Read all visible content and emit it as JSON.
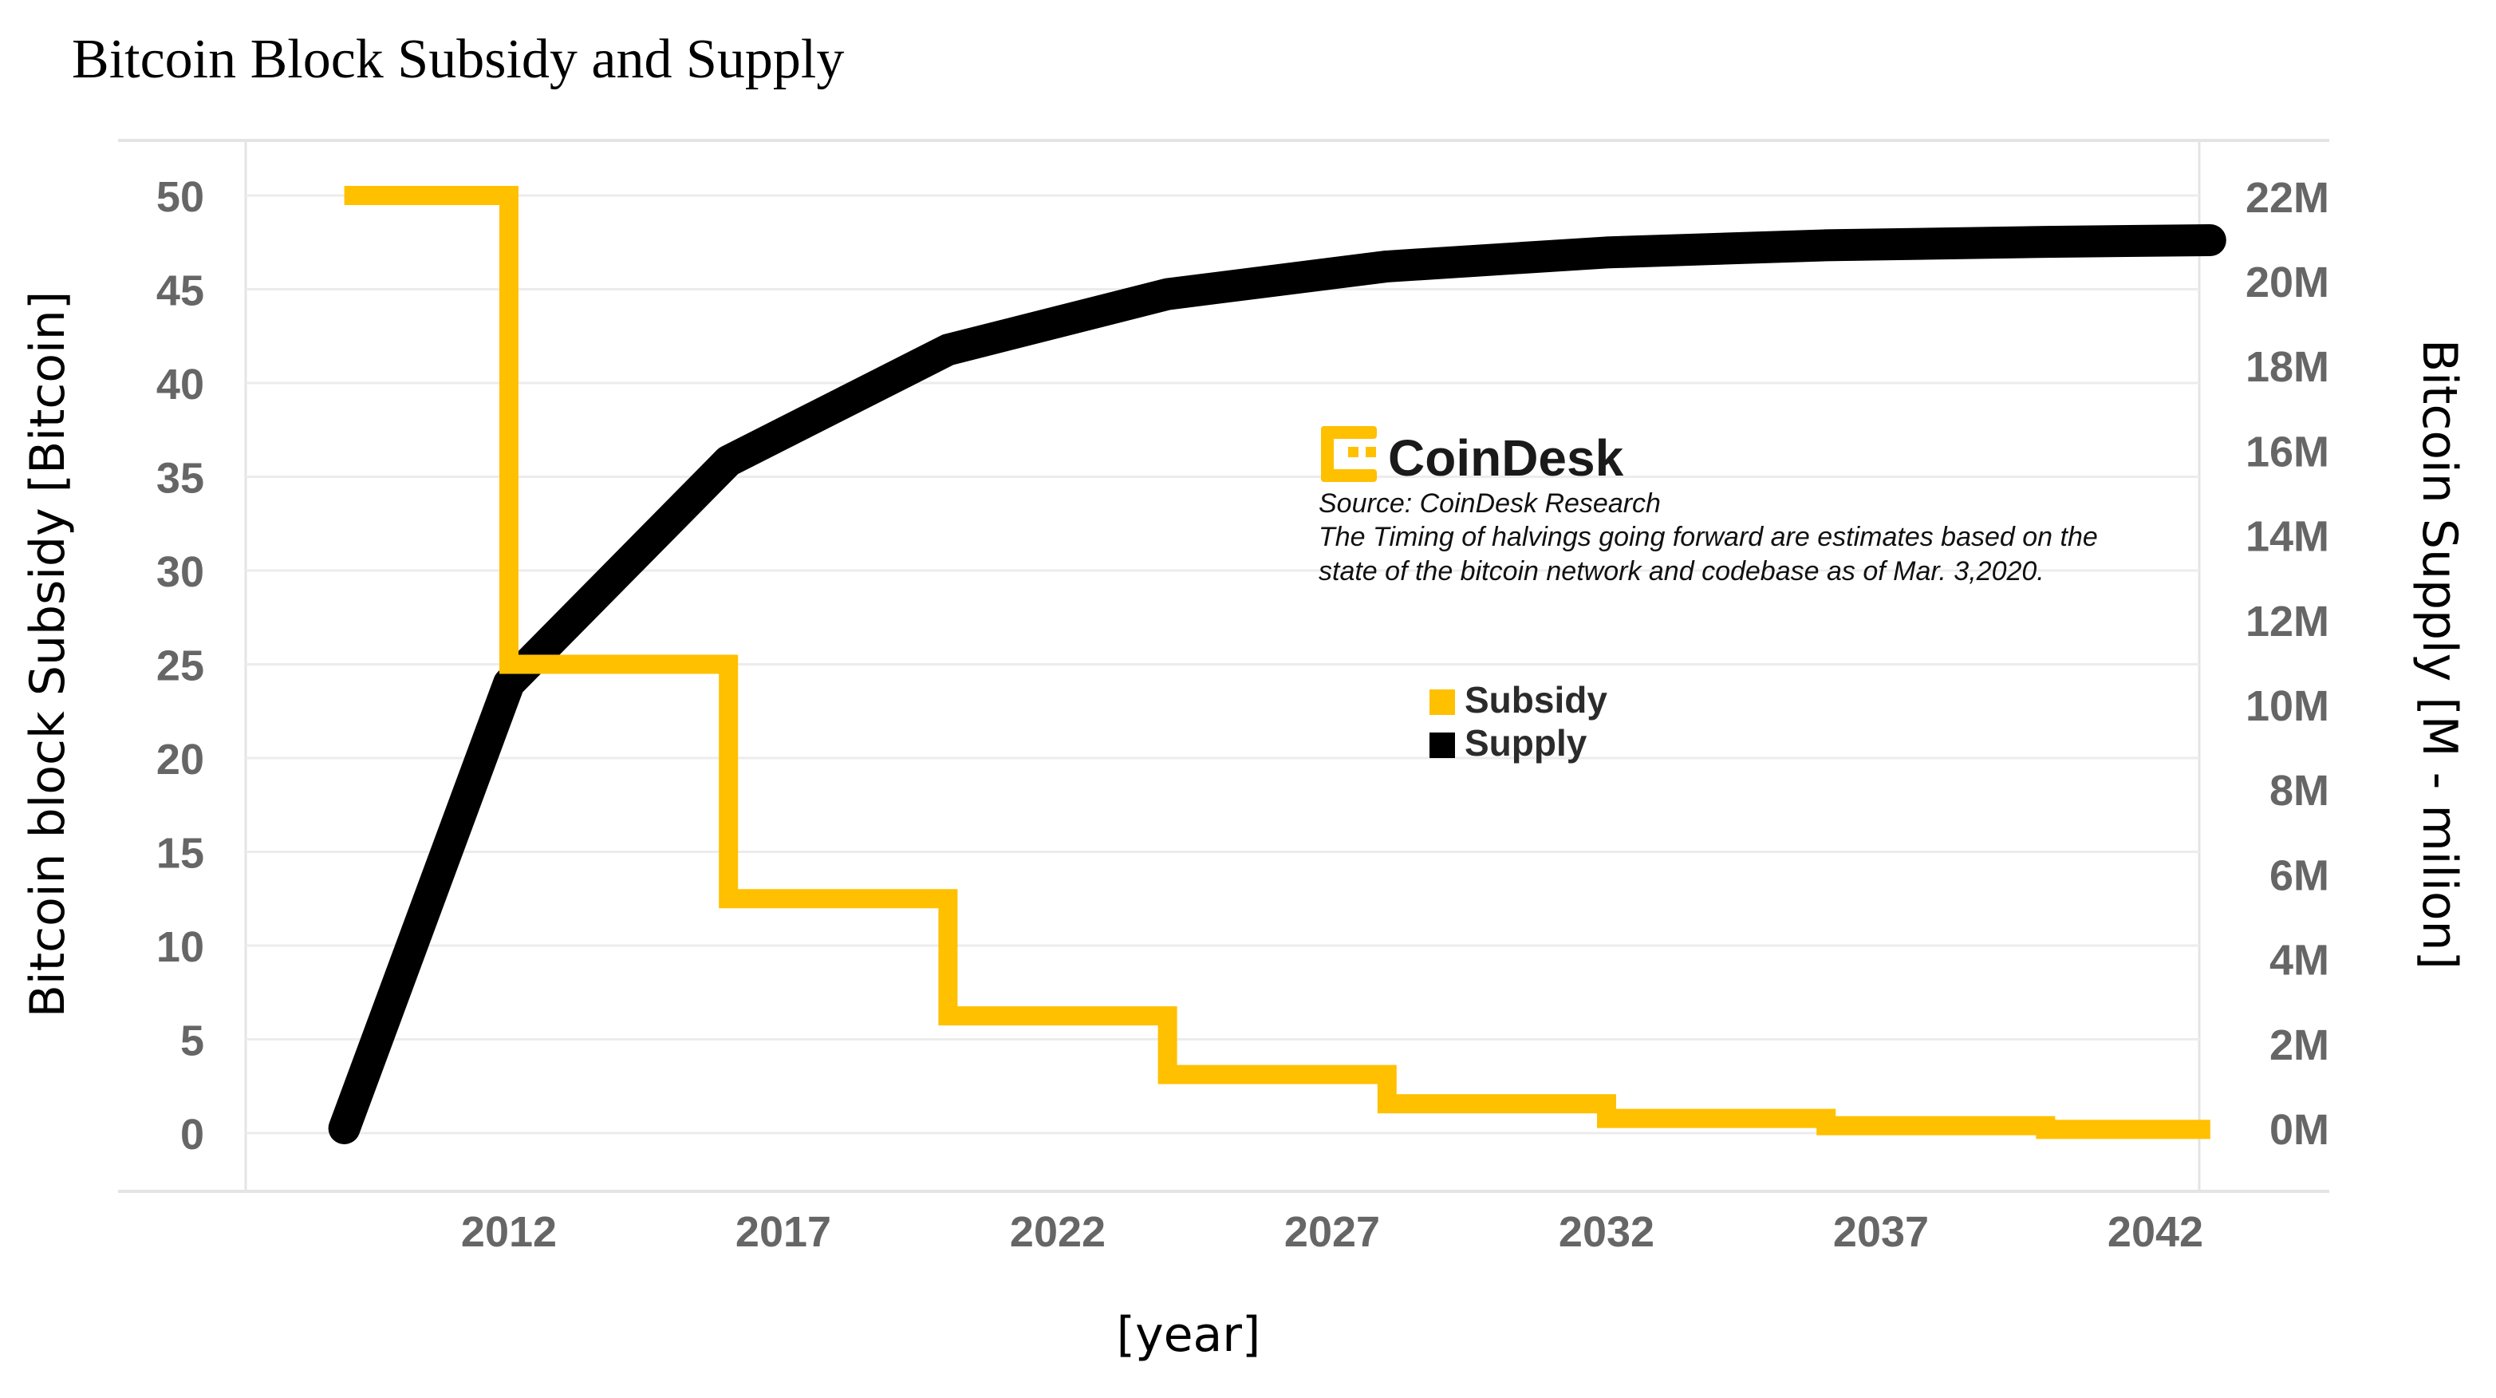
{
  "chart_data": {
    "type": "line",
    "title": "Bitcoin Block Subsidy and Supply",
    "xlabel": "[year]",
    "ylabel_left": "Bitcoin block Subsidy [Bitcoin]",
    "ylabel_right": "Bitcoin Supply [M - milion]",
    "x_ticks": [
      2012,
      2017,
      2022,
      2027,
      2032,
      2037,
      2042
    ],
    "xlim": [
      2009,
      2043
    ],
    "y_left_ticks": [
      0,
      5,
      10,
      15,
      20,
      25,
      30,
      35,
      40,
      45,
      50
    ],
    "y_left_lim": [
      0,
      50
    ],
    "y_right_ticks": [
      "0M",
      "2M",
      "4M",
      "6M",
      "8M",
      "10M",
      "12M",
      "14M",
      "16M",
      "18M",
      "20M",
      "22M"
    ],
    "y_right_lim": [
      0,
      22
    ],
    "grid": "horizontal",
    "legend_placement": "center",
    "legend": [
      {
        "name": "Subsidy",
        "color": "#FFC000"
      },
      {
        "name": "Supply",
        "color": "#000000"
      }
    ],
    "series": [
      {
        "name": "Subsidy",
        "axis": "left",
        "shape": "step",
        "color": "#FFC000",
        "points": [
          [
            2009,
            50
          ],
          [
            2012,
            50
          ],
          [
            2012,
            25
          ],
          [
            2016,
            25
          ],
          [
            2016,
            12.5
          ],
          [
            2020,
            12.5
          ],
          [
            2020,
            6.25
          ],
          [
            2024,
            6.25
          ],
          [
            2024,
            3.125
          ],
          [
            2028,
            3.125
          ],
          [
            2028,
            1.5625
          ],
          [
            2032,
            1.5625
          ],
          [
            2032,
            0.78125
          ],
          [
            2036,
            0.78125
          ],
          [
            2036,
            0.390625
          ],
          [
            2040,
            0.390625
          ],
          [
            2040,
            0.1953125
          ],
          [
            2043,
            0.1953125
          ]
        ]
      },
      {
        "name": "Supply",
        "axis": "right",
        "shape": "line",
        "color": "#000000",
        "points": [
          [
            2009,
            0
          ],
          [
            2012,
            10.5
          ],
          [
            2016,
            15.75
          ],
          [
            2020,
            18.375
          ],
          [
            2024,
            19.6875
          ],
          [
            2028,
            20.34
          ],
          [
            2032,
            20.67
          ],
          [
            2036,
            20.84
          ],
          [
            2040,
            20.92
          ],
          [
            2043,
            20.96
          ]
        ]
      }
    ],
    "annotation": {
      "logo_text": "CoinDesk",
      "source": "Source: CoinDesk Research",
      "note_line1": "The Timing of halvings going forward are estimates based on the",
      "note_line2": "state of the bitcoin network and codebase as of Mar. 3,2020."
    },
    "colors": {
      "subsidy": "#FFC000",
      "supply": "#000000",
      "tick_text": "#666666",
      "grid": "#ECECEC"
    }
  }
}
